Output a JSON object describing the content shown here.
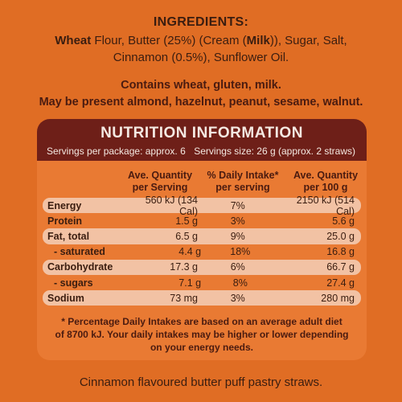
{
  "ingredients": {
    "title": "INGREDIENTS:",
    "line1_wheat": "Wheat",
    "line1_mid": " Flour, Butter (25%) (Cream (",
    "line1_milk": "Milk",
    "line1_end": ")), Sugar, Salt,",
    "line2": "Cinnamon (0.5%), Sunflower Oil.",
    "contains": "Contains wheat, gluten, milk.",
    "may_contain": "May be present almond, hazelnut, peanut, sesame, walnut."
  },
  "nutrition": {
    "title": "NUTRITION INFORMATION",
    "servings_per_package": "Servings per package: approx. 6",
    "serving_size": "Servings size: 26 g (approx. 2 straws)",
    "headers": [
      "",
      "Ave. Quantity\nper Serving",
      "% Daily Intake*\nper serving",
      "Ave. Quantity\nper 100 g"
    ],
    "rows": [
      {
        "name": "Energy",
        "serving": "560 kJ (134 Cal)",
        "daily": "7%",
        "per100": "2150 kJ (514 Cal)"
      },
      {
        "name": "Protein",
        "serving": "1.5 g",
        "daily": "3%",
        "per100": "5.6 g"
      },
      {
        "name": "Fat, total",
        "serving": "6.5 g",
        "daily": "9%",
        "per100": "25.0 g"
      },
      {
        "name": "- saturated",
        "serving": "4.4 g",
        "daily": "18%",
        "per100": "16.8 g"
      },
      {
        "name": "Carbohydrate",
        "serving": "17.3 g",
        "daily": "6%",
        "per100": "66.7 g"
      },
      {
        "name": "- sugars",
        "serving": "7.1 g",
        "daily": "8%",
        "per100": "27.4 g"
      },
      {
        "name": "Sodium",
        "serving": "73 mg",
        "daily": "3%",
        "per100": "280 mg"
      }
    ],
    "footnote_line1": "* Percentage Daily Intakes are based on an average adult diet",
    "footnote_line2": "of 8700 kJ. Your daily intakes may be higher or lower depending",
    "footnote_line3": "on your energy needs."
  },
  "footer": "Cinnamon flavoured butter puff pastry straws.",
  "colors": {
    "background": "#e06d24",
    "panel": "#e97a33",
    "header": "#6e1f18",
    "row_shade": "#f2c2a4"
  }
}
